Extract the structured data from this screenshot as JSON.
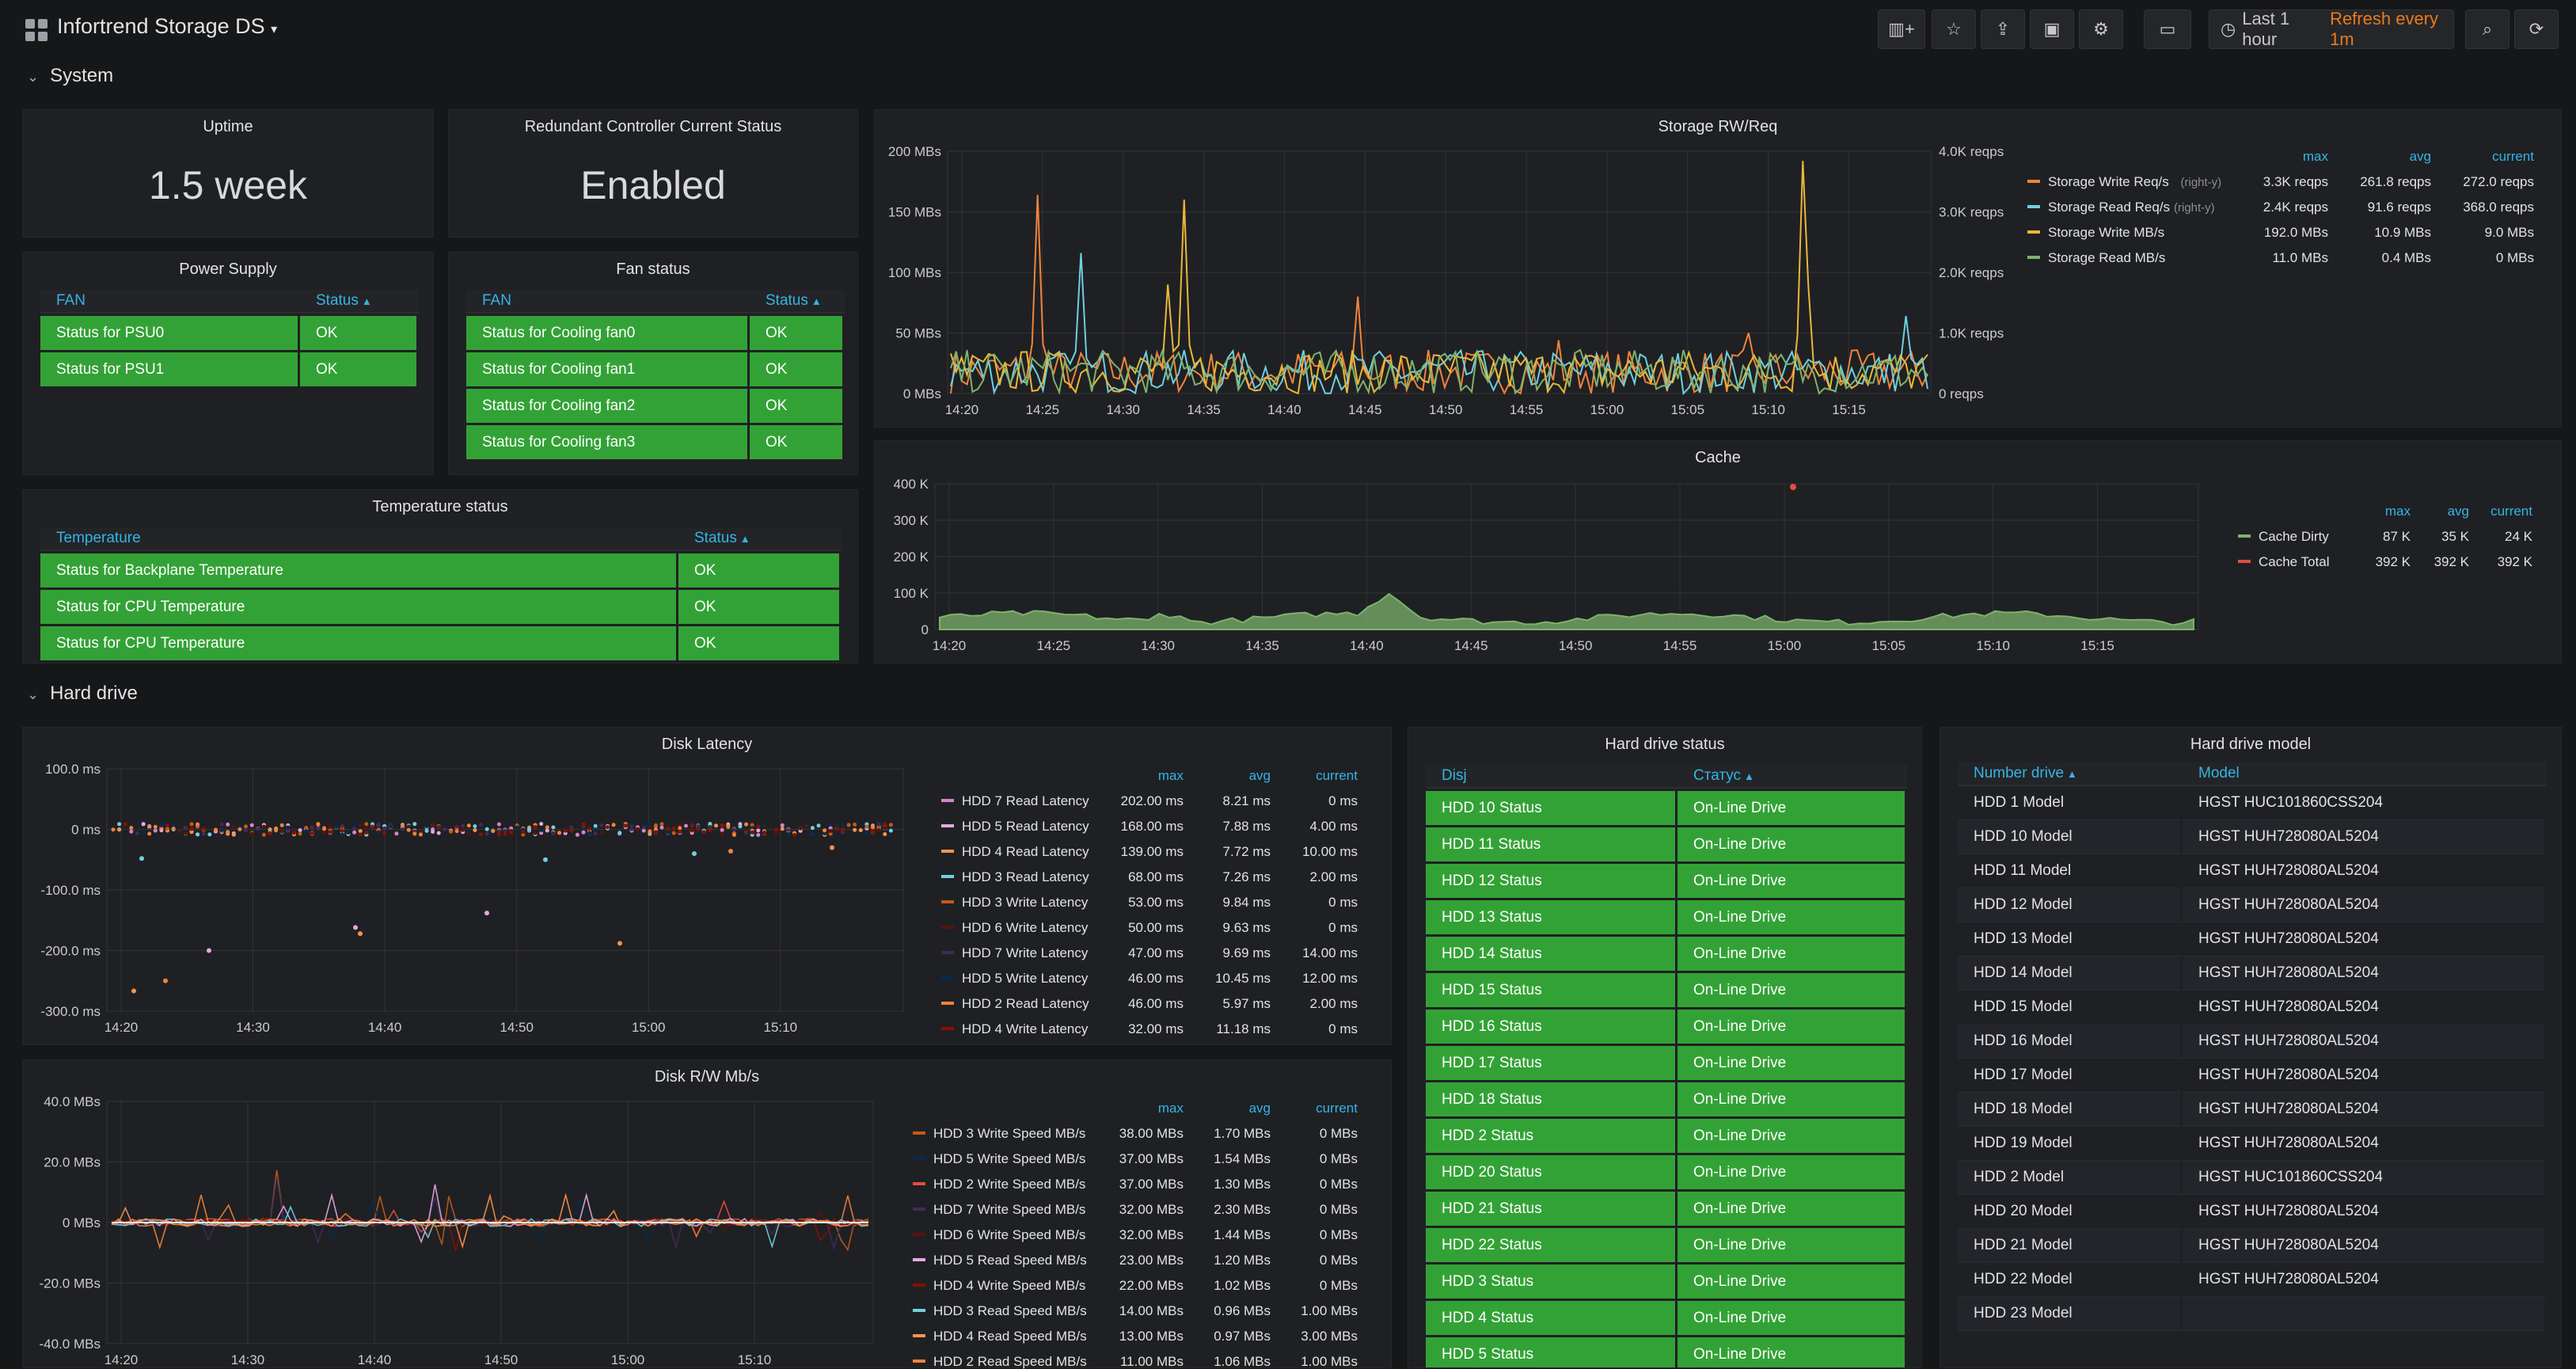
{
  "app": {
    "title": "Infortrend Storage DS",
    "time_range": "Last 1 hour",
    "refresh": "Refresh every 1m"
  },
  "rows": {
    "system": "System",
    "hard_drive": "Hard drive"
  },
  "uptime": {
    "title": "Uptime",
    "value": "1.5 week"
  },
  "controller": {
    "title": "Redundant Controller Current Status",
    "value": "Enabled"
  },
  "power": {
    "title": "Power Supply",
    "col1": "FAN",
    "col2": "Status",
    "rows": [
      {
        "name": "Status for PSU0",
        "status": "OK"
      },
      {
        "name": "Status for PSU1",
        "status": "OK"
      }
    ]
  },
  "fan": {
    "title": "Fan status",
    "col1": "FAN",
    "col2": "Status",
    "rows": [
      {
        "name": "Status for Cooling fan0",
        "status": "OK"
      },
      {
        "name": "Status for Cooling fan1",
        "status": "OK"
      },
      {
        "name": "Status for Cooling fan2",
        "status": "OK"
      },
      {
        "name": "Status for Cooling fan3",
        "status": "OK"
      }
    ]
  },
  "temp": {
    "title": "Temperature status",
    "col1": "Temperature",
    "col2": "Status",
    "rows": [
      {
        "name": "Status for Backplane Temperature",
        "status": "OK"
      },
      {
        "name": "Status for CPU Temperature",
        "status": "OK"
      },
      {
        "name": "Status for CPU Temperature",
        "status": "OK"
      }
    ]
  },
  "colors": {
    "orange": "#ef843c",
    "cyan": "#6ed0e0",
    "yellow": "#eab839",
    "green": "#7eb26d",
    "red": "#e24d42",
    "panel": "#1f2023",
    "ok": "#33a236"
  },
  "chart_data": [
    {
      "type": "line",
      "title": "Storage RW/Req",
      "x": [
        "14:20",
        "14:25",
        "14:30",
        "14:35",
        "14:40",
        "14:45",
        "14:50",
        "14:55",
        "15:00",
        "15:05",
        "15:10",
        "15:15"
      ],
      "y_ticks": [
        "0 MBs",
        "50 MBs",
        "100 MBs",
        "150 MBs",
        "200 MBs"
      ],
      "y2_ticks": [
        "0 reqps",
        "1.0K reqps",
        "2.0K reqps",
        "3.0K reqps",
        "4.0K reqps"
      ],
      "legend_headers": [
        "max",
        "avg",
        "current"
      ],
      "series": [
        {
          "name": "Storage Write Req/s",
          "axis_note": "(right-y)",
          "color": "#ef843c",
          "max": "3.3K reqps",
          "avg": "261.8 reqps",
          "current": "272.0 reqps"
        },
        {
          "name": "Storage Read Req/s",
          "axis_note": "(right-y)",
          "color": "#6ed0e0",
          "max": "2.4K reqps",
          "avg": "91.6 reqps",
          "current": "368.0 reqps"
        },
        {
          "name": "Storage Write MB/s",
          "axis_note": "",
          "color": "#eab839",
          "max": "192.0 MBs",
          "avg": "10.9 MBs",
          "current": "9.0 MBs"
        },
        {
          "name": "Storage Read MB/s",
          "axis_note": "",
          "color": "#7eb26d",
          "max": "11.0 MBs",
          "avg": "0.4 MBs",
          "current": "0 MBs"
        }
      ]
    },
    {
      "type": "area",
      "title": "Cache",
      "x": [
        "14:20",
        "14:25",
        "14:30",
        "14:35",
        "14:40",
        "14:45",
        "14:50",
        "14:55",
        "15:00",
        "15:05",
        "15:10",
        "15:15"
      ],
      "y_ticks": [
        "0",
        "100 K",
        "200 K",
        "300 K",
        "400 K"
      ],
      "legend_headers": [
        "max",
        "avg",
        "current"
      ],
      "series": [
        {
          "name": "Cache Dirty",
          "color": "#7eb26d",
          "max": "87 K",
          "avg": "35 K",
          "current": "24 K"
        },
        {
          "name": "Cache Total",
          "color": "#e24d42",
          "max": "392 K",
          "avg": "392 K",
          "current": "392 K"
        }
      ]
    },
    {
      "type": "scatter",
      "title": "Disk Latency",
      "x": [
        "14:20",
        "14:30",
        "14:40",
        "14:50",
        "15:00",
        "15:10"
      ],
      "y_ticks": [
        "-300.0 ms",
        "-200.0 ms",
        "-100.0 ms",
        "0 ms",
        "100.0 ms"
      ],
      "legend_headers": [
        "max",
        "avg",
        "current"
      ],
      "series": [
        {
          "name": "HDD 7 Read Latency",
          "color": "#d683ce",
          "max": "202.00 ms",
          "avg": "8.21 ms",
          "current": "0 ms"
        },
        {
          "name": "HDD 5 Read Latency",
          "color": "#e5a8e2",
          "max": "168.00 ms",
          "avg": "7.88 ms",
          "current": "4.00 ms"
        },
        {
          "name": "HDD 4 Read Latency",
          "color": "#f9934e",
          "max": "139.00 ms",
          "avg": "7.72 ms",
          "current": "10.00 ms"
        },
        {
          "name": "HDD 3 Read Latency",
          "color": "#6ed0e0",
          "max": "68.00 ms",
          "avg": "7.26 ms",
          "current": "2.00 ms"
        },
        {
          "name": "HDD 3 Write Latency",
          "color": "#c15c17",
          "max": "53.00 ms",
          "avg": "9.84 ms",
          "current": "0 ms"
        },
        {
          "name": "HDD 6 Write Latency",
          "color": "#58140c",
          "max": "50.00 ms",
          "avg": "9.63 ms",
          "current": "0 ms"
        },
        {
          "name": "HDD 7 Write Latency",
          "color": "#3f2b5b",
          "max": "47.00 ms",
          "avg": "9.69 ms",
          "current": "14.00 ms"
        },
        {
          "name": "HDD 5 Write Latency",
          "color": "#052b51",
          "max": "46.00 ms",
          "avg": "10.45 ms",
          "current": "12.00 ms"
        },
        {
          "name": "HDD 2 Read Latency",
          "color": "#ef843c",
          "max": "46.00 ms",
          "avg": "5.97 ms",
          "current": "2.00 ms"
        },
        {
          "name": "HDD 4 Write Latency",
          "color": "#890f02",
          "max": "32.00 ms",
          "avg": "11.18 ms",
          "current": "0 ms"
        }
      ]
    },
    {
      "type": "line",
      "title": "Disk R/W Mb/s",
      "x": [
        "14:20",
        "14:30",
        "14:40",
        "14:50",
        "15:00",
        "15:10"
      ],
      "y_ticks": [
        "-40.0 MBs",
        "-20.0 MBs",
        "0 MBs",
        "20.0 MBs",
        "40.0 MBs"
      ],
      "legend_headers": [
        "max",
        "avg",
        "current"
      ],
      "series": [
        {
          "name": "HDD 3 Write Speed MB/s",
          "color": "#c15c17",
          "max": "38.00 MBs",
          "avg": "1.70 MBs",
          "current": "0 MBs"
        },
        {
          "name": "HDD 5 Write Speed MB/s",
          "color": "#052b51",
          "max": "37.00 MBs",
          "avg": "1.54 MBs",
          "current": "0 MBs"
        },
        {
          "name": "HDD 2 Write Speed MB/s",
          "color": "#e24d42",
          "max": "37.00 MBs",
          "avg": "1.30 MBs",
          "current": "0 MBs"
        },
        {
          "name": "HDD 7 Write Speed MB/s",
          "color": "#3f2b5b",
          "max": "32.00 MBs",
          "avg": "2.30 MBs",
          "current": "0 MBs"
        },
        {
          "name": "HDD 6 Write Speed MB/s",
          "color": "#58140c",
          "max": "32.00 MBs",
          "avg": "1.44 MBs",
          "current": "0 MBs"
        },
        {
          "name": "HDD 5 Read Speed MB/s",
          "color": "#e5a8e2",
          "max": "23.00 MBs",
          "avg": "1.20 MBs",
          "current": "0 MBs"
        },
        {
          "name": "HDD 4 Write Speed MB/s",
          "color": "#890f02",
          "max": "22.00 MBs",
          "avg": "1.02 MBs",
          "current": "0 MBs"
        },
        {
          "name": "HDD 3 Read Speed MB/s",
          "color": "#6ed0e0",
          "max": "14.00 MBs",
          "avg": "0.96 MBs",
          "current": "1.00 MBs"
        },
        {
          "name": "HDD 4 Read Speed MB/s",
          "color": "#f9934e",
          "max": "13.00 MBs",
          "avg": "0.97 MBs",
          "current": "3.00 MBs"
        },
        {
          "name": "HDD 2 Read Speed MB/s",
          "color": "#ef843c",
          "max": "11.00 MBs",
          "avg": "1.06 MBs",
          "current": "1.00 MBs"
        }
      ]
    }
  ],
  "hdd_status": {
    "title": "Hard drive status",
    "col1": "Disj",
    "col2": "Статус",
    "rows": [
      {
        "name": "HDD 10 Status",
        "status": "On-Line Drive"
      },
      {
        "name": "HDD 11 Status",
        "status": "On-Line Drive"
      },
      {
        "name": "HDD 12 Status",
        "status": "On-Line Drive"
      },
      {
        "name": "HDD 13 Status",
        "status": "On-Line Drive"
      },
      {
        "name": "HDD 14 Status",
        "status": "On-Line Drive"
      },
      {
        "name": "HDD 15 Status",
        "status": "On-Line Drive"
      },
      {
        "name": "HDD 16 Status",
        "status": "On-Line Drive"
      },
      {
        "name": "HDD 17 Status",
        "status": "On-Line Drive"
      },
      {
        "name": "HDD 18 Status",
        "status": "On-Line Drive"
      },
      {
        "name": "HDD 2 Status",
        "status": "On-Line Drive"
      },
      {
        "name": "HDD 20 Status",
        "status": "On-Line Drive"
      },
      {
        "name": "HDD 21 Status",
        "status": "On-Line Drive"
      },
      {
        "name": "HDD 22 Status",
        "status": "On-Line Drive"
      },
      {
        "name": "HDD 3 Status",
        "status": "On-Line Drive"
      },
      {
        "name": "HDD 4 Status",
        "status": "On-Line Drive"
      },
      {
        "name": "HDD 5 Status",
        "status": "On-Line Drive"
      }
    ]
  },
  "hdd_model": {
    "title": "Hard drive model",
    "col1": "Number drive",
    "col2": "Model",
    "rows": [
      {
        "name": "HDD 1 Model",
        "model": "HGST HUC101860CSS204"
      },
      {
        "name": "HDD 10 Model",
        "model": "HGST HUH728080AL5204"
      },
      {
        "name": "HDD 11 Model",
        "model": "HGST HUH728080AL5204"
      },
      {
        "name": "HDD 12 Model",
        "model": "HGST HUH728080AL5204"
      },
      {
        "name": "HDD 13 Model",
        "model": "HGST HUH728080AL5204"
      },
      {
        "name": "HDD 14 Model",
        "model": "HGST HUH728080AL5204"
      },
      {
        "name": "HDD 15 Model",
        "model": "HGST HUH728080AL5204"
      },
      {
        "name": "HDD 16 Model",
        "model": "HGST HUH728080AL5204"
      },
      {
        "name": "HDD 17 Model",
        "model": "HGST HUH728080AL5204"
      },
      {
        "name": "HDD 18 Model",
        "model": "HGST HUH728080AL5204"
      },
      {
        "name": "HDD 19 Model",
        "model": "HGST HUH728080AL5204"
      },
      {
        "name": "HDD 2 Model",
        "model": "HGST HUC101860CSS204"
      },
      {
        "name": "HDD 20 Model",
        "model": "HGST HUH728080AL5204"
      },
      {
        "name": "HDD 21 Model",
        "model": "HGST HUH728080AL5204"
      },
      {
        "name": "HDD 22 Model",
        "model": "HGST HUH728080AL5204"
      },
      {
        "name": "HDD 23 Model",
        "model": ""
      }
    ]
  }
}
